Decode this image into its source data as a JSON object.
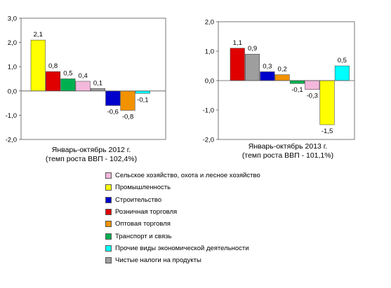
{
  "colors": {
    "agriculture": "#f4b8dc",
    "industry": "#ffff00",
    "construction": "#0000cc",
    "retail": "#e00000",
    "wholesale": "#f39200",
    "transport": "#00b050",
    "other": "#00ffff",
    "taxes": "#9e9e9e"
  },
  "legend": [
    {
      "key": "agriculture",
      "label": "Сельское хозяйство, охота и лесное хозяйство"
    },
    {
      "key": "industry",
      "label": "Промышленность"
    },
    {
      "key": "construction",
      "label": "Строительство"
    },
    {
      "key": "retail",
      "label": "Розничная торговля"
    },
    {
      "key": "wholesale",
      "label": "Оптовая торговля"
    },
    {
      "key": "transport",
      "label": "Транспорт и связь"
    },
    {
      "key": "other",
      "label": "Прочие виды экономической деятельности"
    },
    {
      "key": "taxes",
      "label": "Чистые налоги на продукты"
    }
  ],
  "chart_data": [
    {
      "type": "bar",
      "title_line1": "Январь-октябрь 2012 г.",
      "title_line2": "(темп роста ВВП - 102,4%)",
      "ylim": [
        -2.0,
        3.0
      ],
      "yticks": [
        "3,0",
        "2,0",
        "1,0",
        "0,0",
        "-1,0",
        "-2,0"
      ],
      "ytick_values": [
        3.0,
        2.0,
        1.0,
        0.0,
        -1.0,
        -2.0
      ],
      "categories": [
        "Промышленность",
        "Розничная торговля",
        "Транспорт и связь",
        "Сельское хозяйство, охота и лесное хозяйство",
        "Чистые налоги на продукты",
        "Строительство",
        "Оптовая торговля",
        "Прочие виды экономической деятельности"
      ],
      "keys": [
        "industry",
        "retail",
        "transport",
        "agriculture",
        "taxes",
        "construction",
        "wholesale",
        "other"
      ],
      "values": [
        2.1,
        0.8,
        0.5,
        0.4,
        0.1,
        -0.6,
        -0.8,
        -0.1
      ],
      "labels": [
        "2,1",
        "0,8",
        "0,5",
        "0,4",
        "0,1",
        "-0,6",
        "-0,8",
        "-0,1"
      ]
    },
    {
      "type": "bar",
      "title_line1": "Январь-октябрь 2013 г.",
      "title_line2": "(темп роста ВВП - 101,1%)",
      "ylim": [
        -2.0,
        2.0
      ],
      "yticks": [
        "2,0",
        "1,0",
        "0,0",
        "-1,0",
        "-2,0"
      ],
      "ytick_values": [
        2.0,
        1.0,
        0.0,
        -1.0,
        -2.0
      ],
      "categories": [
        "Розничная торговля",
        "Чистые налоги на продукты",
        "Строительство",
        "Оптовая торговля",
        "Транспорт и связь",
        "Сельское хозяйство, охота и лесное хозяйство",
        "Промышленность",
        "Прочие виды экономической деятельности"
      ],
      "keys": [
        "retail",
        "taxes",
        "construction",
        "wholesale",
        "transport",
        "agriculture",
        "industry",
        "other"
      ],
      "values": [
        1.1,
        0.9,
        0.3,
        0.2,
        -0.1,
        -0.3,
        -1.5,
        0.5
      ],
      "labels": [
        "1,1",
        "0,9",
        "0,3",
        "0,2",
        "-0,1",
        "-0,3",
        "-1,5",
        "0,5"
      ]
    }
  ]
}
